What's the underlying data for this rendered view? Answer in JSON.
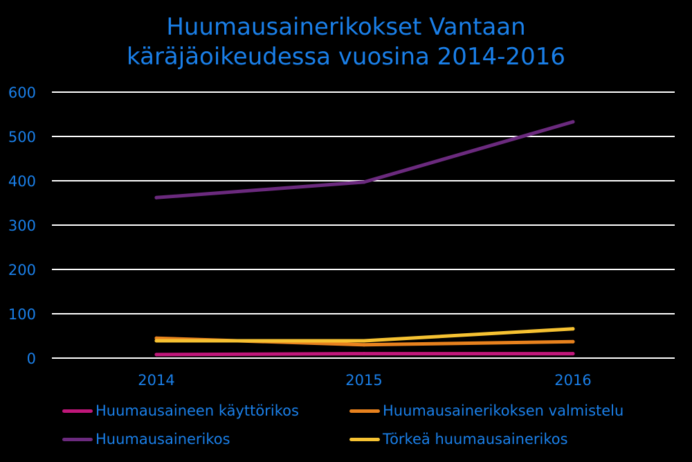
{
  "title_lines": [
    "Huumausainerikokset Vantaan",
    "käräjäoikeudessa vuosina 2014-2016"
  ],
  "colors": {
    "background": "#000000",
    "text": "#1a7fe8",
    "grid": "#ffffff"
  },
  "chart_data": {
    "type": "line",
    "title": "Huumausainerikokset Vantaan käräjäoikeudessa vuosina 2014-2016",
    "xlabel": "",
    "ylabel": "",
    "categories": [
      "2014",
      "2015",
      "2016"
    ],
    "ylim": [
      0,
      600
    ],
    "yticks": [
      "0",
      "100",
      "200",
      "300",
      "400",
      "500",
      "600"
    ],
    "grid": true,
    "legend_position": "bottom",
    "series": [
      {
        "name": "Huumausaineen käyttörikos",
        "color": "#c0177a",
        "values": [
          8,
          10,
          10
        ]
      },
      {
        "name": "Huumausainerikoksen valmistelu",
        "color": "#e8821e",
        "values": [
          45,
          30,
          37
        ]
      },
      {
        "name": "Huumausainerikos",
        "color": "#6b2a7e",
        "values": [
          362,
          397,
          533
        ]
      },
      {
        "name": "Törkeä huumausainerikos",
        "color": "#f6c232",
        "values": [
          39,
          39,
          66
        ]
      }
    ]
  }
}
